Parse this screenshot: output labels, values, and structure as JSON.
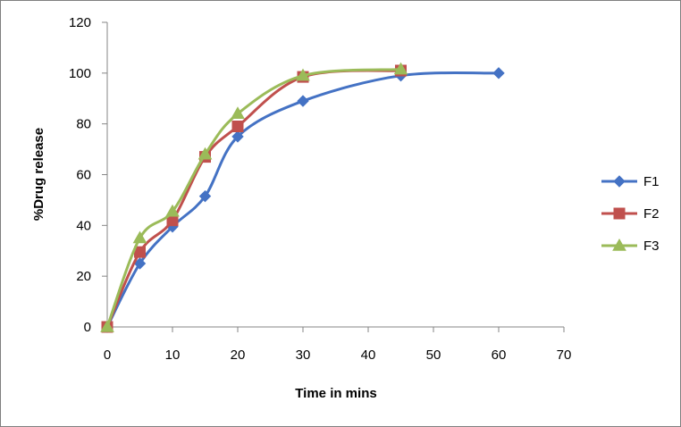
{
  "chart_data": {
    "type": "line",
    "title": "",
    "xlabel": "Time in mins",
    "ylabel": "%Drug release",
    "xlim": [
      0,
      70
    ],
    "ylim": [
      0,
      120
    ],
    "x_ticks": [
      0,
      10,
      20,
      30,
      40,
      50,
      60,
      70
    ],
    "y_ticks": [
      0,
      20,
      40,
      60,
      80,
      100,
      120
    ],
    "grid": false,
    "legend": "right",
    "series": [
      {
        "name": "F1",
        "color": "#4472c4",
        "marker": "diamond",
        "points": [
          [
            0,
            0
          ],
          [
            5,
            25
          ],
          [
            10,
            39.5
          ],
          [
            15,
            51.5
          ],
          [
            20,
            75
          ],
          [
            30,
            89
          ],
          [
            45,
            99
          ],
          [
            60,
            100
          ]
        ]
      },
      {
        "name": "F2",
        "color": "#c0504d",
        "marker": "square",
        "points": [
          [
            0,
            0
          ],
          [
            5,
            29.5
          ],
          [
            10,
            42
          ],
          [
            15,
            67
          ],
          [
            20,
            79
          ],
          [
            30,
            98.5
          ],
          [
            45,
            101
          ]
        ]
      },
      {
        "name": "F3",
        "color": "#9bbb59",
        "marker": "triangle",
        "points": [
          [
            0,
            0
          ],
          [
            5,
            35
          ],
          [
            10,
            45.5
          ],
          [
            15,
            68
          ],
          [
            20,
            84
          ],
          [
            30,
            99
          ],
          [
            45,
            101.5
          ]
        ]
      }
    ]
  }
}
